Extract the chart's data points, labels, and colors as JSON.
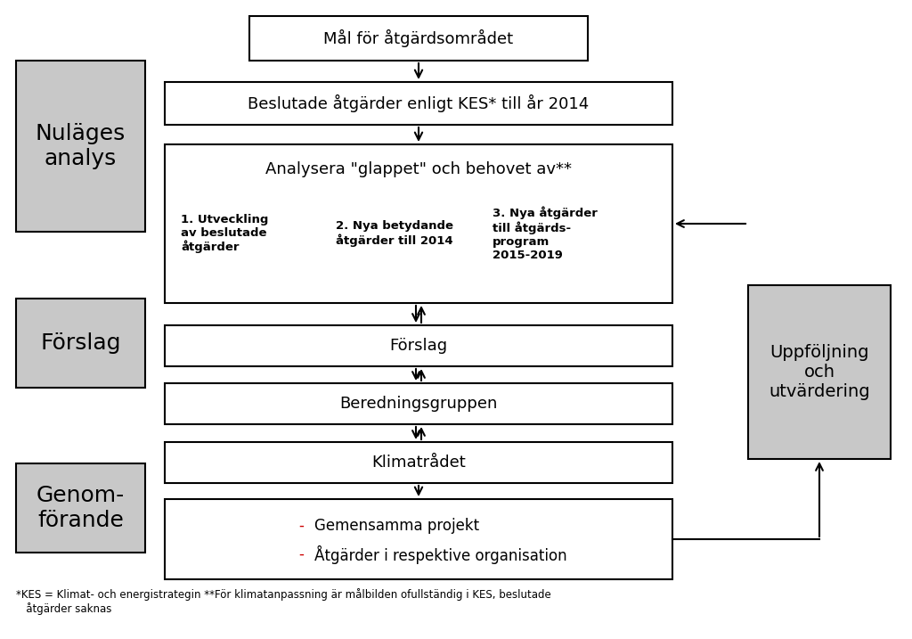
{
  "bg_color": "#ffffff",
  "box_edge_color": "#000000",
  "box_fill_white": "#ffffff",
  "box_fill_gray": "#c8c8c8",
  "text_color": "#000000",
  "red_color": "#cc0000",
  "footnote": "*KES = Klimat- och energistrategin **För klimatanpassning är målbilden ofullständig i KES, beslutade\n   åtgärder saknas",
  "analysera_title": "Analysera \"glappet\" och behovet av**",
  "analysera_col1": "1. Utveckling\nav beslutade\nåtgärder",
  "analysera_col2": "2. Nya betydande\nåtgärder till 2014",
  "analysera_col3": "3. Nya åtgärder\ntill åtgärds-\nprogram\n2015-2019",
  "genomfor_dash1_text": "Gemensamma projekt",
  "genomfor_dash2_text": "Åtgärder i respektive organisation"
}
